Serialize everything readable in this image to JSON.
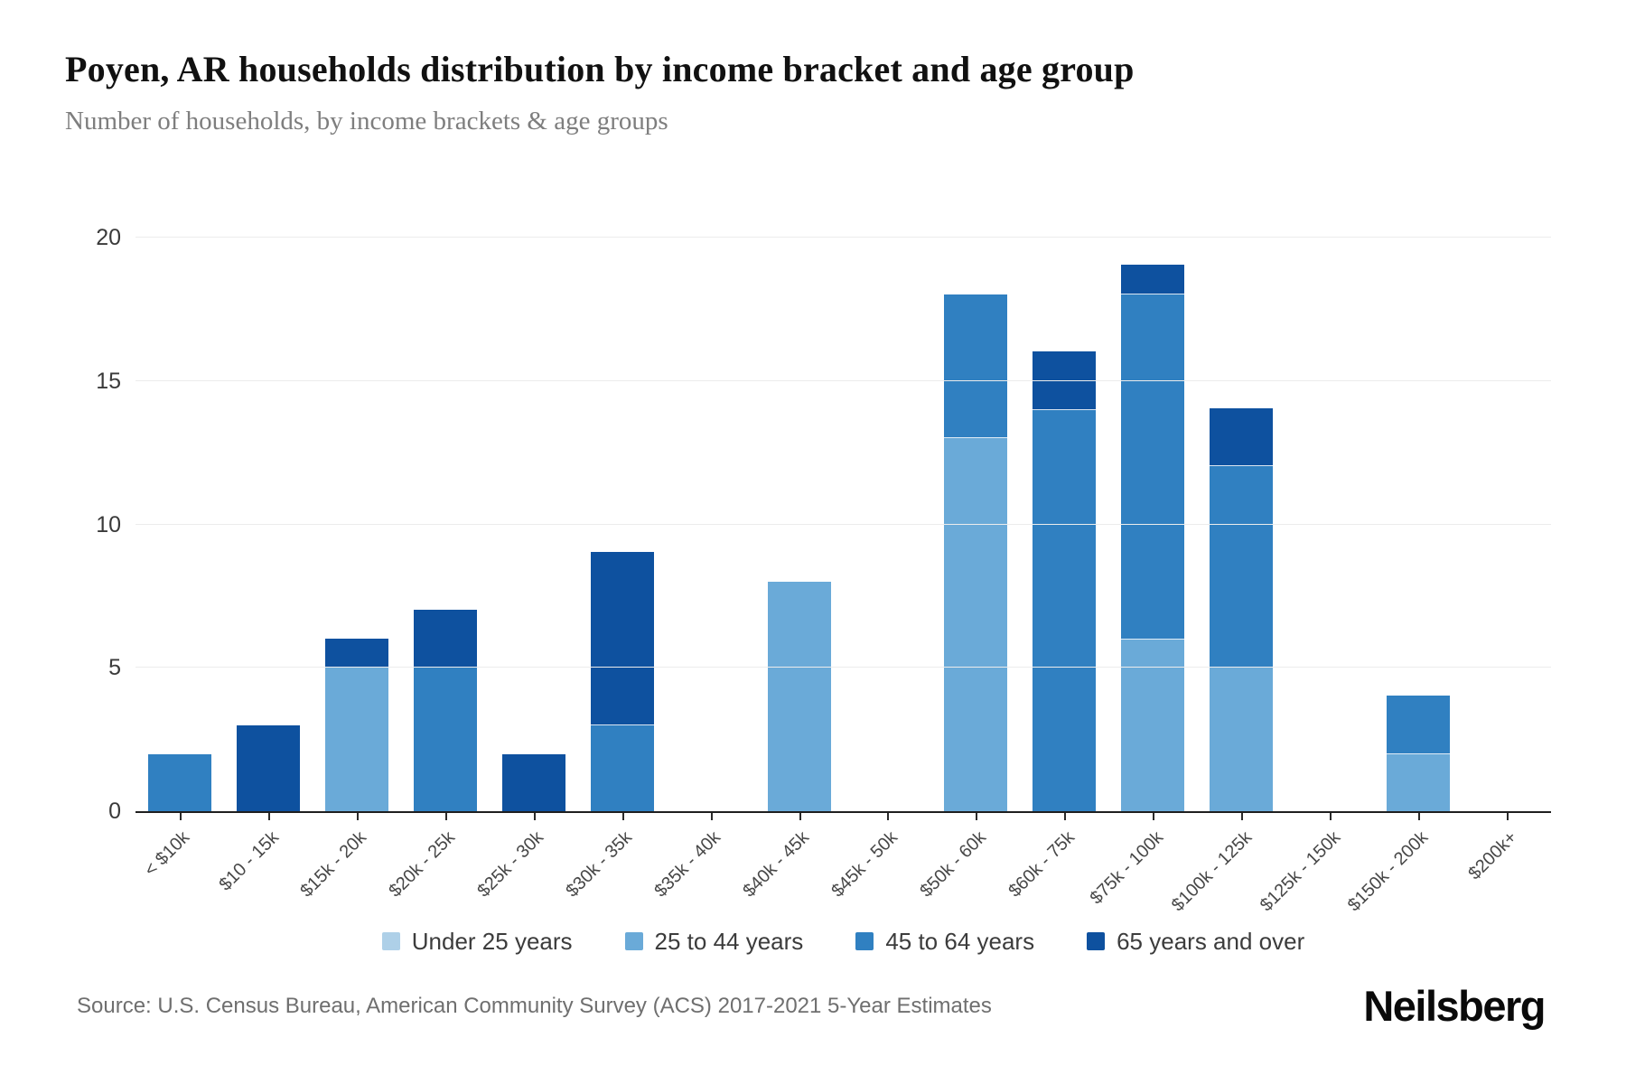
{
  "header": {
    "title": "Poyen, AR households distribution by income bracket and age group",
    "subtitle": "Number of households, by income brackets & age groups"
  },
  "chart_data": {
    "type": "bar",
    "stacked": true,
    "categories": [
      "< $10k",
      "$10 - 15k",
      "$15k - 20k",
      "$20k - 25k",
      "$25k - 30k",
      "$30k - 35k",
      "$35k - 40k",
      "$40k - 45k",
      "$45k - 50k",
      "$50k - 60k",
      "$60k - 75k",
      "$75k - 100k",
      "$100k - 125k",
      "$125k - 150k",
      "$150k - 200k",
      "$200k+"
    ],
    "series": [
      {
        "name": "Under 25 years",
        "color": "#aed0e8",
        "values": [
          0,
          0,
          0,
          0,
          0,
          0,
          0,
          0,
          0,
          0,
          0,
          0,
          0,
          0,
          0,
          0
        ]
      },
      {
        "name": "25 to 44 years",
        "color": "#6aaad8",
        "values": [
          0,
          0,
          5,
          0,
          0,
          0,
          0,
          8,
          0,
          13,
          0,
          6,
          5,
          0,
          2,
          0
        ]
      },
      {
        "name": "45 to 64 years",
        "color": "#3080c1",
        "values": [
          2,
          0,
          0,
          5,
          0,
          3,
          0,
          0,
          0,
          5,
          14,
          12,
          7,
          0,
          2,
          0
        ]
      },
      {
        "name": "65 years and over",
        "color": "#0e519f",
        "values": [
          0,
          3,
          1,
          2,
          2,
          6,
          0,
          0,
          0,
          0,
          2,
          1,
          2,
          0,
          0,
          0
        ]
      }
    ],
    "totals": [
      2,
      3,
      6,
      7,
      2,
      9,
      0,
      8,
      0,
      18,
      16,
      19,
      14,
      0,
      4,
      0
    ],
    "title": "Poyen, AR households distribution by income bracket and age group",
    "xlabel": "",
    "ylabel": "",
    "ylim": [
      0,
      20
    ],
    "yticks": [
      0,
      5,
      10,
      15,
      20
    ],
    "grid": "horizontal",
    "legend_position": "bottom",
    "axis_color": "#1f1f1f",
    "gridline_color": "#ececec"
  },
  "footer": {
    "source": "Source: U.S. Census Bureau, American Community Survey (ACS) 2017-2021 5-Year Estimates",
    "brand": "Neilsberg"
  }
}
